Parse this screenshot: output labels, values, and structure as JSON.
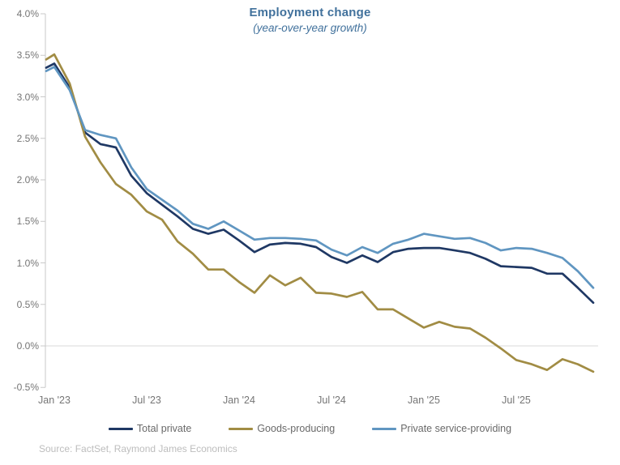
{
  "chart_data": {
    "type": "line",
    "title": "Employment change",
    "subtitle": "(year-over-year growth)",
    "source": "Source: FactSet, Raymond James Economics",
    "legend_position": "bottom",
    "grid": "zero-line-only",
    "ylim": [
      -0.5,
      4.0
    ],
    "y_ticks": [
      {
        "value": 4.0,
        "label": "4.0%"
      },
      {
        "value": 3.5,
        "label": "3.5%"
      },
      {
        "value": 3.0,
        "label": "3.0%"
      },
      {
        "value": 2.5,
        "label": "2.5%"
      },
      {
        "value": 2.0,
        "label": "2.0%"
      },
      {
        "value": 1.5,
        "label": "1.5%"
      },
      {
        "value": 1.0,
        "label": "1.0%"
      },
      {
        "value": 0.5,
        "label": "0.5%"
      },
      {
        "value": 0.0,
        "label": "0.0%"
      },
      {
        "value": -0.5,
        "label": "-0.5%"
      }
    ],
    "x_categories": [
      "Jan '23",
      "Feb '23",
      "Mar '23",
      "Apr '23",
      "May '23",
      "Jun '23",
      "Jul '23",
      "Aug '23",
      "Sep '23",
      "Oct '23",
      "Nov '23",
      "Dec '23",
      "Jan '24",
      "Feb '24",
      "Mar '24",
      "Apr '24",
      "May '24",
      "Jun '24",
      "Jul '24",
      "Aug '24",
      "Sep '24",
      "Oct '24",
      "Nov '24",
      "Dec '24",
      "Jan '25",
      "Feb '25",
      "Mar '25",
      "Apr '25",
      "May '25",
      "Jun '25",
      "Jul '25",
      "Aug '25",
      "Sep '25",
      "Oct '25",
      "Nov '25",
      "Dec '25"
    ],
    "x_tick_labels": [
      {
        "index": 0,
        "label": "Jan '23"
      },
      {
        "index": 6,
        "label": "Jul '23"
      },
      {
        "index": 12,
        "label": "Jan '24"
      },
      {
        "index": 18,
        "label": "Jul '24"
      },
      {
        "index": 24,
        "label": "Jan '25"
      },
      {
        "index": 30,
        "label": "Jul '25"
      }
    ],
    "series": [
      {
        "name": "Total private",
        "color": "#1f3864",
        "lead_in_value": 3.35,
        "values": [
          3.4,
          3.11,
          2.57,
          2.43,
          2.39,
          2.05,
          1.84,
          1.7,
          1.56,
          1.41,
          1.35,
          1.4,
          1.27,
          1.13,
          1.22,
          1.24,
          1.23,
          1.19,
          1.07,
          1.0,
          1.09,
          1.01,
          1.13,
          1.17,
          1.18,
          1.18,
          1.15,
          1.12,
          1.05,
          0.96,
          0.95,
          0.94,
          0.87,
          0.87,
          0.7,
          0.52
        ]
      },
      {
        "name": "Goods-producing",
        "color": "#a18c44",
        "lead_in_value": 3.45,
        "values": [
          3.51,
          3.16,
          2.52,
          2.21,
          1.95,
          1.82,
          1.62,
          1.52,
          1.26,
          1.11,
          0.92,
          0.92,
          0.77,
          0.64,
          0.85,
          0.73,
          0.82,
          0.64,
          0.63,
          0.59,
          0.65,
          0.44,
          0.44,
          0.33,
          0.22,
          0.29,
          0.23,
          0.21,
          0.1,
          -0.03,
          -0.17,
          -0.22,
          -0.29,
          -0.16,
          -0.22,
          -0.31
        ]
      },
      {
        "name": "Private service-providing",
        "color": "#6096c1",
        "lead_in_value": 3.31,
        "values": [
          3.36,
          3.08,
          2.6,
          2.54,
          2.5,
          2.15,
          1.89,
          1.76,
          1.63,
          1.47,
          1.41,
          1.5,
          1.39,
          1.28,
          1.3,
          1.3,
          1.29,
          1.27,
          1.16,
          1.09,
          1.19,
          1.12,
          1.23,
          1.28,
          1.35,
          1.32,
          1.29,
          1.3,
          1.24,
          1.15,
          1.18,
          1.17,
          1.12,
          1.06,
          0.9,
          0.7
        ]
      }
    ],
    "colors": {
      "title": "#41719c",
      "axis_text": "#757575",
      "legend_text": "#696969",
      "source_text": "#bdbdbd",
      "axis_line": "#c9c9c9",
      "zero_line": "#d9d9d9",
      "background": "#ffffff"
    }
  }
}
